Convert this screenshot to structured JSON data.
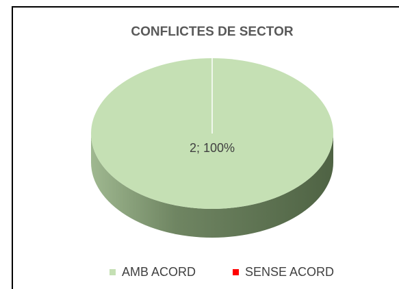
{
  "chart_data": {
    "type": "pie",
    "title": "CONFLICTES DE SECTOR",
    "categories": [
      "AMB ACORD",
      "SENSE ACORD"
    ],
    "values": [
      2,
      0
    ],
    "value_labels": [
      "2; 100%",
      null
    ],
    "colors": [
      "#c5e0b4",
      "#ff0000"
    ],
    "legend": "bottom"
  }
}
